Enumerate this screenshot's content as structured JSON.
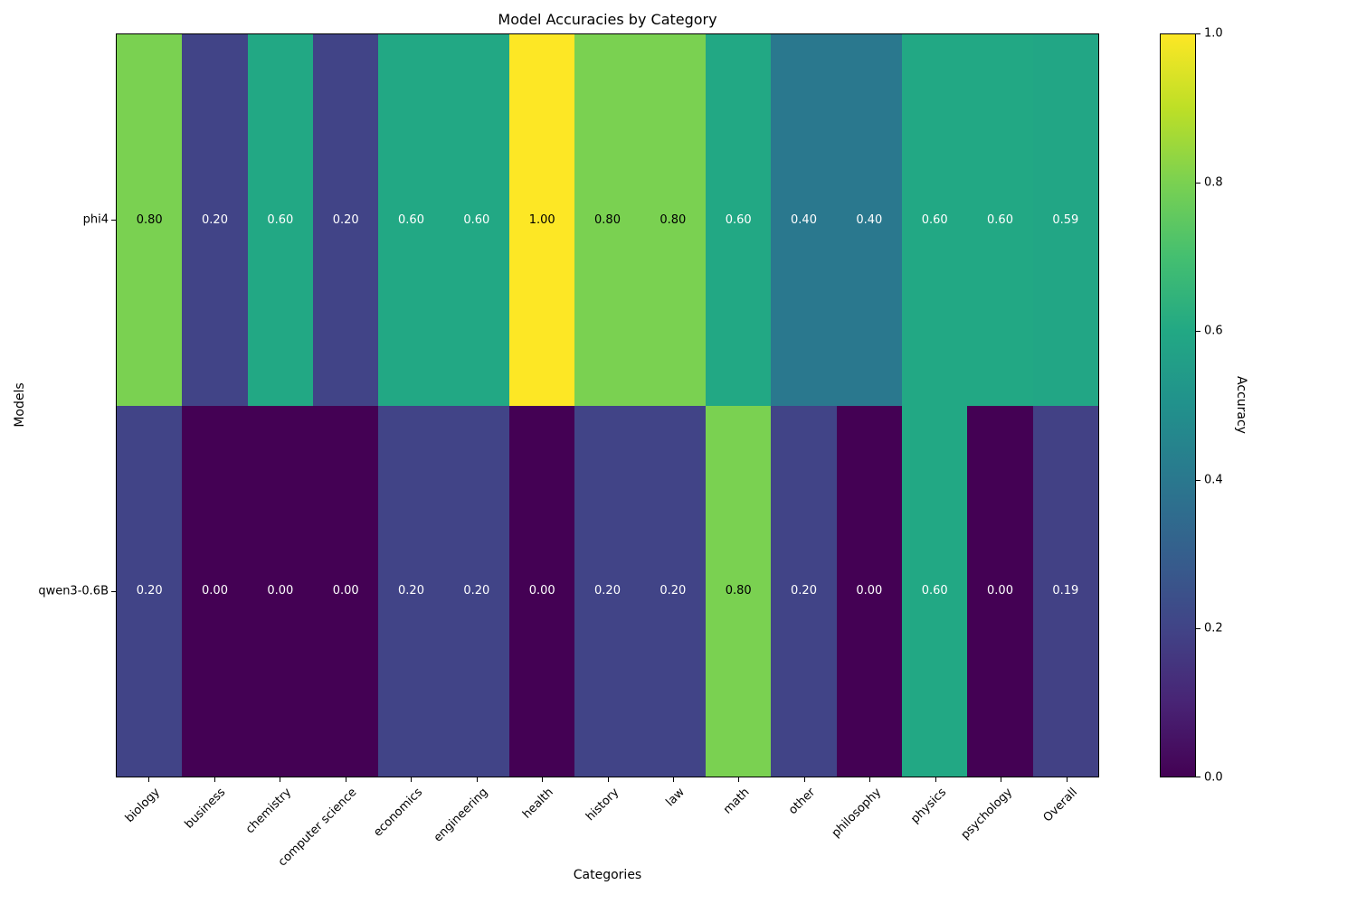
{
  "title": "Model Accuracies by Category",
  "chart_data": {
    "type": "heatmap",
    "title": "Model Accuracies by Category",
    "xlabel": "Categories",
    "ylabel": "Models",
    "background": "#ffffff",
    "categories": [
      "biology",
      "business",
      "chemistry",
      "computer science",
      "economics",
      "engineering",
      "health",
      "history",
      "law",
      "math",
      "other",
      "philosophy",
      "physics",
      "psychology",
      "Overall"
    ],
    "models": [
      "phi4",
      "qwen3-0.6B"
    ],
    "series": [
      {
        "name": "phi4",
        "values": [
          0.8,
          0.2,
          0.6,
          0.2,
          0.6,
          0.6,
          1.0,
          0.8,
          0.8,
          0.6,
          0.4,
          0.4,
          0.6,
          0.6,
          0.59
        ]
      },
      {
        "name": "qwen3-0.6B",
        "values": [
          0.2,
          0.0,
          0.0,
          0.0,
          0.2,
          0.2,
          0.0,
          0.2,
          0.2,
          0.8,
          0.2,
          0.0,
          0.6,
          0.0,
          0.19
        ]
      }
    ],
    "value_decimals": 2,
    "vmin": 0,
    "vmax": 1,
    "grid": false,
    "colorbar": {
      "label": "Accuracy",
      "ticks": [
        1.0,
        0.8,
        0.6,
        0.4,
        0.2,
        0.0
      ],
      "tick_labels": [
        "1.0",
        "0.8",
        "0.6",
        "0.4",
        "0.2",
        "0.0"
      ]
    },
    "colormap": {
      "name": "viridis",
      "stops": [
        {
          "pos": 0.0,
          "color": "#440154"
        },
        {
          "pos": 0.1,
          "color": "#482475"
        },
        {
          "pos": 0.2,
          "color": "#414487"
        },
        {
          "pos": 0.3,
          "color": "#355f8d"
        },
        {
          "pos": 0.4,
          "color": "#2a788e"
        },
        {
          "pos": 0.5,
          "color": "#21918c"
        },
        {
          "pos": 0.6,
          "color": "#22a884"
        },
        {
          "pos": 0.7,
          "color": "#44bf70"
        },
        {
          "pos": 0.8,
          "color": "#7ad151"
        },
        {
          "pos": 0.9,
          "color": "#bddf26"
        },
        {
          "pos": 1.0,
          "color": "#fde725"
        }
      ],
      "cell_text_dark": "#000000",
      "cell_text_light": "#ffffff",
      "dark_text_threshold": 0.75
    }
  }
}
